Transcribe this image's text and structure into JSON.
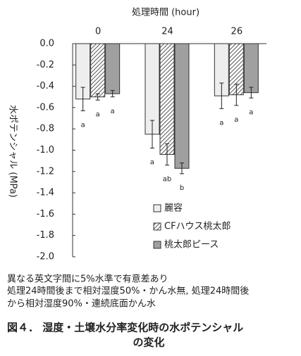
{
  "chart_data": {
    "type": "bar",
    "xlabel": "処理時間 (hour)",
    "ylabel": "水ポテンシャル (MPa)",
    "categories": [
      "0",
      "24",
      "26"
    ],
    "series": [
      {
        "name": "麗容",
        "color": "#eeeeee",
        "values": [
          -0.52,
          -0.85,
          -0.49
        ],
        "errors": [
          0.11,
          0.13,
          0.12
        ],
        "letters": [
          "a",
          "a",
          "a"
        ]
      },
      {
        "name": "CFハウス桃太郎",
        "color": "#bbbbbb",
        "pattern": "hatch",
        "values": [
          -0.5,
          -1.04,
          -0.48
        ],
        "errors": [
          0.03,
          0.1,
          0.1
        ],
        "letters": [
          "a",
          "ab",
          "a"
        ]
      },
      {
        "name": "桃太郎ピース",
        "color": "#a0a0a0",
        "values": [
          -0.47,
          -1.17,
          -0.46
        ],
        "errors": [
          0.03,
          0.05,
          0.05
        ],
        "letters": [
          "a",
          "b",
          "a"
        ]
      }
    ],
    "ylim": [
      -2.0,
      0
    ],
    "yticks": [
      {
        "value": 0,
        "label": "0.0"
      },
      -0.2,
      -0.4,
      -0.6,
      -0.8,
      {
        "value": -1,
        "label": "-1.0"
      },
      -1.2,
      -1.4,
      -1.6,
      -1.8,
      {
        "value": -2,
        "label": "-2.0"
      }
    ],
    "notes": [
      "異なる英文字間に5%水準で有意差あり",
      "処理24時間後まで相対湿度50%・かん水無, 処理24時間後",
      "から相対湿度90%・連続底面かん水"
    ],
    "caption": [
      "図４． 湿度・土壌水分率変化時の水ポテンシャル",
      "の変化"
    ]
  }
}
